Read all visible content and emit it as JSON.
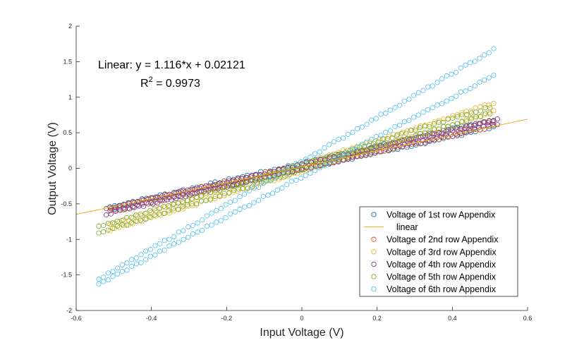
{
  "chart_data": {
    "type": "scatter",
    "title": "",
    "xlabel": "Input Voltage (V)",
    "ylabel": "Output Voltage (V)",
    "xlim": [
      -0.6,
      0.6
    ],
    "ylim": [
      -2,
      2
    ],
    "xticks": [
      -0.6,
      -0.4,
      -0.2,
      0,
      0.2,
      0.4,
      0.6
    ],
    "xtick_labels": [
      "-0.6",
      "-0.4",
      "-0.2",
      "0",
      "0.2",
      "0.4",
      "0.6"
    ],
    "yticks": [
      -2,
      -1.5,
      -1,
      -0.5,
      0,
      0.5,
      1,
      1.5,
      2
    ],
    "ytick_labels": [
      "-2",
      "-1.5",
      "-1",
      "-0.5",
      "0",
      "0.5",
      "1",
      "1.5",
      "2"
    ],
    "grid": false,
    "legend_position": "bottom-right",
    "annotation": {
      "line1": "Linear:  y = 1.116*x + 0.02121",
      "r2_prefix": "R",
      "r2_sup": "2",
      "r2_rest": " = 0.9973"
    },
    "fit": {
      "name": "linear",
      "slope": 1.116,
      "intercept": 0.02121,
      "x_range": [
        -0.6,
        0.6
      ],
      "color": "#EDB120"
    },
    "series": [
      {
        "name": "Voltage of 1st row Appendix",
        "color": "#0072BD",
        "x_range": [
          -0.51,
          0.51
        ],
        "upper": [
          [
            -0.5,
            -0.53
          ],
          [
            0.5,
            0.67
          ]
        ],
        "lower": [
          [
            -0.5,
            -0.58
          ],
          [
            0.5,
            0.56
          ]
        ]
      },
      {
        "name": "Voltage of 2nd row Appendix",
        "color": "#D95319",
        "x_range": [
          -0.51,
          0.51
        ],
        "upper": [
          [
            -0.5,
            -0.55
          ],
          [
            0.5,
            0.66
          ]
        ],
        "lower": [
          [
            -0.5,
            -0.6
          ],
          [
            0.5,
            0.58
          ]
        ]
      },
      {
        "name": "Voltage of 3rd row Appendix",
        "color": "#EDB120",
        "x_range": [
          -0.51,
          0.51
        ],
        "upper": [
          [
            -0.5,
            -0.78
          ],
          [
            0.5,
            0.9
          ]
        ],
        "lower": [
          [
            -0.5,
            -0.86
          ],
          [
            0.5,
            0.78
          ]
        ]
      },
      {
        "name": "Voltage of 4th row Appendix",
        "color": "#7E2F8E",
        "x_range": [
          -0.52,
          0.52
        ],
        "upper": [
          [
            -0.5,
            -0.55
          ],
          [
            0.5,
            0.66
          ]
        ],
        "lower": [
          [
            -0.5,
            -0.62
          ],
          [
            0.5,
            0.6
          ]
        ]
      },
      {
        "name": "Voltage of 5th row Appendix",
        "color": "#77AC30",
        "x_range": [
          -0.54,
          0.5
        ],
        "upper": [
          [
            -0.5,
            -0.76
          ],
          [
            0.5,
            0.86
          ]
        ],
        "lower": [
          [
            -0.5,
            -0.84
          ],
          [
            0.5,
            0.78
          ]
        ]
      },
      {
        "name": "Voltage of 6th row Appendix",
        "color": "#4DBEEE",
        "x_range": [
          -0.54,
          0.51
        ],
        "upper": [
          [
            -0.5,
            -1.44
          ],
          [
            0.5,
            1.64
          ]
        ],
        "lower": [
          [
            -0.5,
            -1.52
          ],
          [
            0.5,
            1.28
          ]
        ]
      }
    ]
  }
}
